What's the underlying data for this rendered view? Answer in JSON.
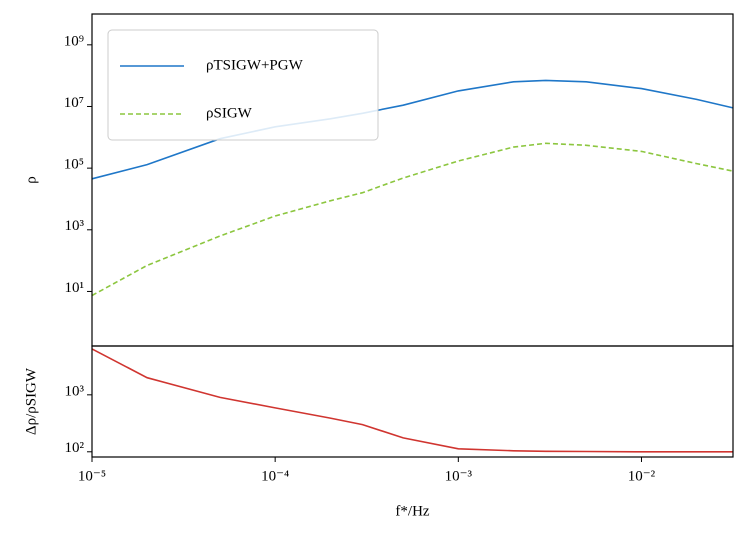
{
  "chart_data": [
    {
      "type": "line",
      "ylabel": "ρ",
      "xscale": "log",
      "yscale": "log",
      "legend": "upper left",
      "x": [
        1e-05,
        2e-05,
        5e-05,
        0.0001,
        0.0002,
        0.0003,
        0.0005,
        0.001,
        0.002,
        0.003,
        0.005,
        0.01,
        0.02,
        0.0316
      ],
      "xlim": [
        1e-05,
        0.0316
      ],
      "ylim": [
        0.17,
        10000000000
      ],
      "yticks": [
        {
          "value": 10,
          "label": "10¹"
        },
        {
          "value": 1000,
          "label": "10³"
        },
        {
          "value": 100000,
          "label": "10⁵"
        },
        {
          "value": 10000000,
          "label": "10⁷"
        },
        {
          "value": 1000000000,
          "label": "10⁹"
        }
      ],
      "series": [
        {
          "name": "ρTSIGW+PGW",
          "color": "#1f77c8",
          "dash": false,
          "values": [
            45000,
            130000,
            900000,
            2200000,
            4000000,
            6000000,
            11000000,
            32000000,
            63000000,
            70000000,
            63000000,
            38000000,
            17000000,
            9000000
          ]
        },
        {
          "name": "ρSIGW",
          "color": "#8cc63f",
          "dash": true,
          "values": [
            7.4,
            70,
            630,
            2800,
            8700,
            16000,
            48000,
            170000,
            480000,
            640000,
            550000,
            350000,
            140000,
            80000
          ]
        }
      ]
    },
    {
      "type": "line",
      "ylabel": "Δρ/ρSIGW",
      "xlabel": "f*/Hz",
      "xscale": "log",
      "yscale": "log",
      "x": [
        1e-05,
        2e-05,
        5e-05,
        0.0001,
        0.0002,
        0.0003,
        0.0005,
        0.001,
        0.002,
        0.003,
        0.005,
        0.01,
        0.02,
        0.0316
      ],
      "xlim": [
        1e-05,
        0.0316
      ],
      "xticks": [
        {
          "value": 1e-05,
          "label": "10⁻⁵"
        },
        {
          "value": 0.0001,
          "label": "10⁻⁴"
        },
        {
          "value": 0.001,
          "label": "10⁻³"
        },
        {
          "value": 0.01,
          "label": "10⁻²"
        }
      ],
      "ylim": [
        81,
        7200
      ],
      "yticks": [
        {
          "value": 100,
          "label": "10²"
        },
        {
          "value": 1000,
          "label": "10³"
        }
      ],
      "series": [
        {
          "name": "Δρ/ρSIGW",
          "color": "#d03530",
          "dash": false,
          "values": [
            6400,
            2000,
            900,
            590,
            390,
            300,
            175,
            113,
            104,
            102,
            101,
            100,
            100,
            100
          ]
        }
      ]
    }
  ]
}
